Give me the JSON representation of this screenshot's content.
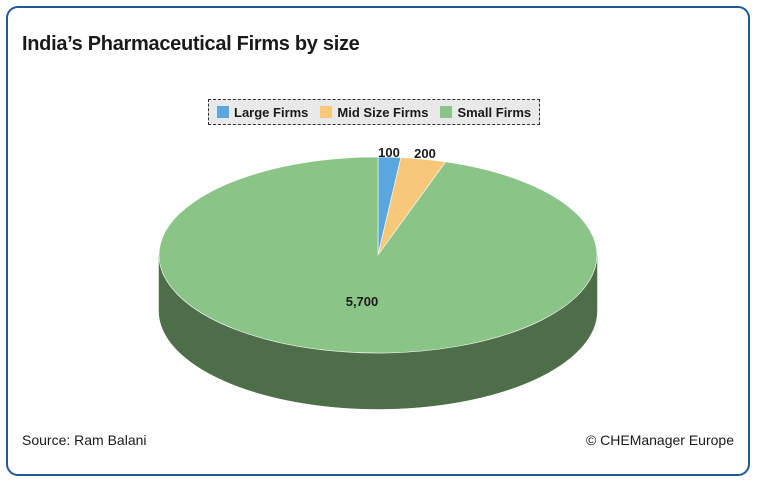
{
  "title": "India’s Pharmaceutical Firms by size",
  "source": "Source: Ram Balani",
  "copyright": "© CHEManager Europe",
  "chart_data": {
    "type": "pie",
    "title": "India’s Pharmaceutical Firms by size",
    "categories": [
      "Large Firms",
      "Mid Size Firms",
      "Small Firms"
    ],
    "values": [
      100,
      200,
      5700
    ],
    "value_labels": [
      "100",
      "200",
      "5,700"
    ],
    "colors": [
      "#5aa6e0",
      "#f7c77a",
      "#8ac486"
    ],
    "side_colors": [
      "#3b78a8",
      "#b88a45",
      "#4e6e4a"
    ],
    "style": "3d",
    "legend_position": "top"
  }
}
